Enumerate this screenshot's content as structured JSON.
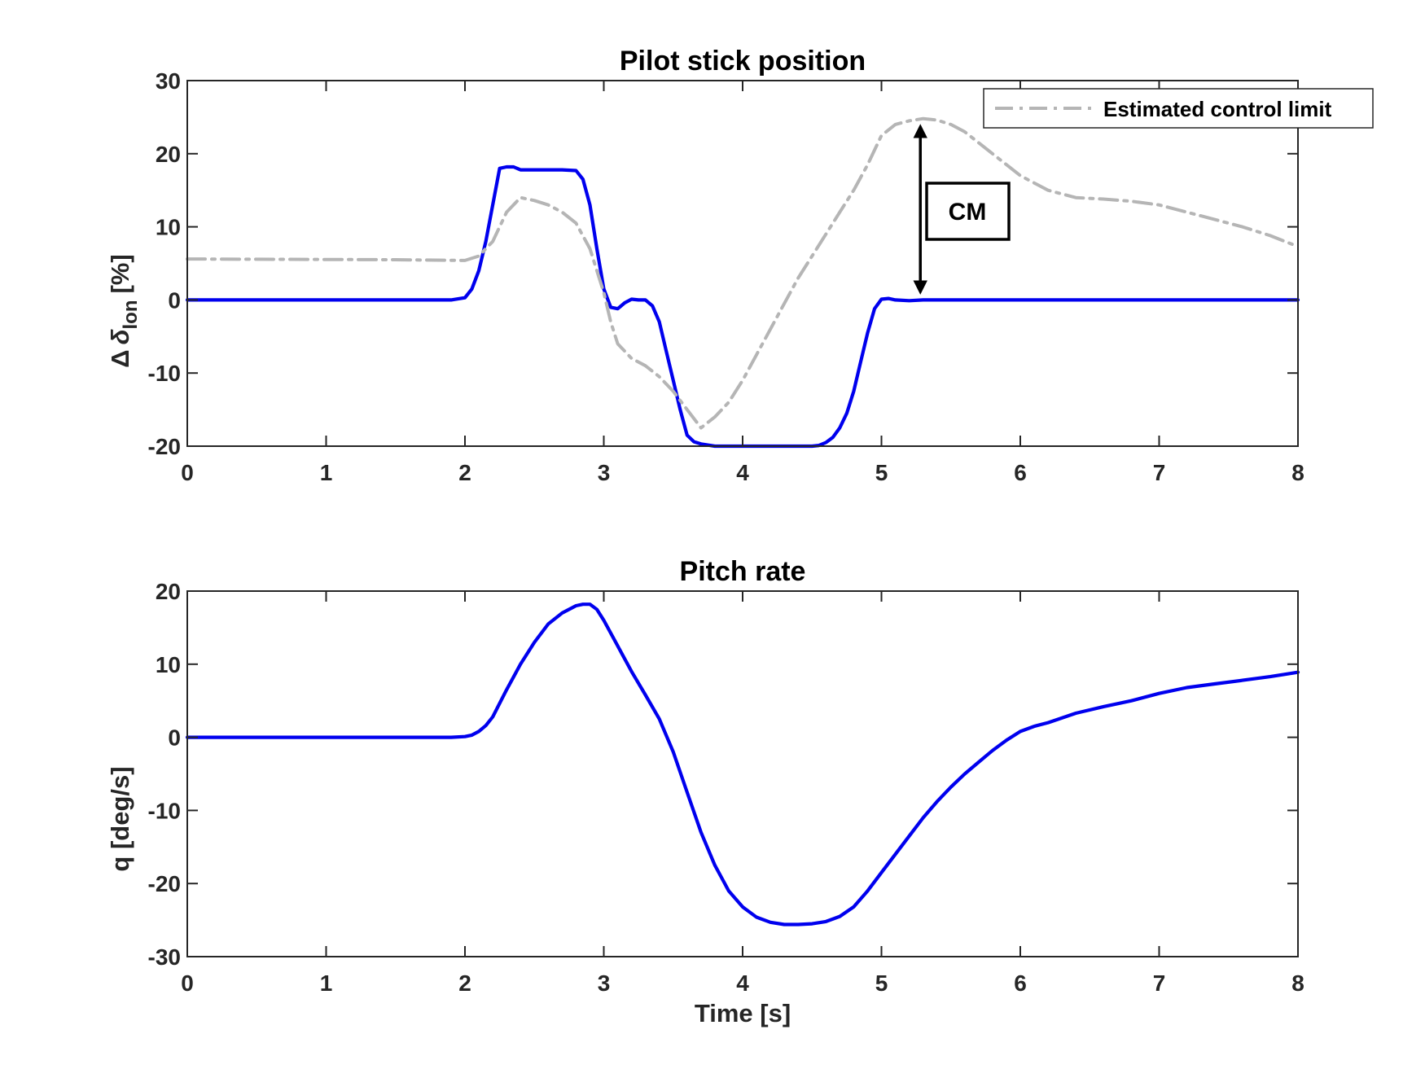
{
  "colors": {
    "stick": "#0000ee",
    "limit": "#b5b5b5",
    "axis": "#262626",
    "annotation": "#000000"
  },
  "chart_data": [
    {
      "type": "line",
      "title": "Pilot stick position",
      "xlabel": "",
      "ylabel_prefix": "Δ",
      "ylabel_symbol": "δ",
      "ylabel_subscript": "lon",
      "ylabel_suffix": "[%]",
      "xlim": [
        0,
        8
      ],
      "ylim": [
        -20,
        30
      ],
      "xticks": [
        0,
        1,
        2,
        3,
        4,
        5,
        6,
        7,
        8
      ],
      "yticks": [
        -20,
        -10,
        0,
        10,
        20,
        30
      ],
      "grid": false,
      "legend": {
        "placement": "top-right",
        "entries": [
          "Estimated control limit"
        ]
      },
      "annotation": {
        "text": "CM",
        "x": 5.28,
        "y_from": 0,
        "y_to": 24.8
      },
      "series": [
        {
          "id": "stick",
          "style": "solid",
          "x": [
            0,
            1.9,
            2.0,
            2.05,
            2.1,
            2.15,
            2.2,
            2.25,
            2.3,
            2.35,
            2.4,
            2.45,
            2.5,
            2.6,
            2.7,
            2.8,
            2.85,
            2.9,
            2.95,
            3.0,
            3.05,
            3.1,
            3.15,
            3.2,
            3.25,
            3.3,
            3.35,
            3.4,
            3.45,
            3.5,
            3.55,
            3.6,
            3.65,
            3.7,
            3.8,
            4.0,
            4.2,
            4.4,
            4.5,
            4.55,
            4.6,
            4.65,
            4.7,
            4.75,
            4.8,
            4.85,
            4.9,
            4.95,
            5.0,
            5.05,
            5.1,
            5.2,
            5.3,
            6.0,
            7.0,
            8.0
          ],
          "values": [
            0,
            0,
            0.3,
            1.5,
            4,
            8,
            13,
            18,
            18.2,
            18.2,
            17.8,
            17.8,
            17.8,
            17.8,
            17.8,
            17.7,
            16.5,
            13,
            7,
            1.5,
            -1,
            -1.2,
            -0.4,
            0.1,
            0,
            0,
            -0.8,
            -3,
            -7,
            -11,
            -15,
            -18.5,
            -19.4,
            -19.7,
            -20,
            -20,
            -20,
            -20,
            -20,
            -19.9,
            -19.5,
            -18.8,
            -17.5,
            -15.5,
            -12.5,
            -8.5,
            -4.5,
            -1.2,
            0.1,
            0.2,
            0,
            -0.1,
            0,
            0,
            0,
            0
          ]
        },
        {
          "id": "limit",
          "name": "Estimated control limit",
          "style": "dash-dot",
          "x": [
            0,
            1.5,
            2.0,
            2.1,
            2.2,
            2.3,
            2.4,
            2.5,
            2.6,
            2.7,
            2.8,
            2.9,
            3.0,
            3.05,
            3.1,
            3.2,
            3.3,
            3.4,
            3.5,
            3.6,
            3.7,
            3.8,
            3.9,
            4.0,
            4.1,
            4.2,
            4.3,
            4.4,
            4.5,
            4.6,
            4.7,
            4.8,
            4.9,
            5.0,
            5.1,
            5.2,
            5.3,
            5.4,
            5.5,
            5.6,
            5.8,
            6.0,
            6.2,
            6.4,
            6.6,
            6.8,
            7.0,
            7.2,
            7.4,
            7.6,
            7.8,
            8.0
          ],
          "values": [
            5.6,
            5.5,
            5.4,
            6,
            8,
            12,
            14,
            13.6,
            13,
            12,
            10.5,
            7,
            1,
            -3,
            -6,
            -8,
            -9,
            -10.5,
            -12.5,
            -15,
            -17.5,
            -16,
            -14,
            -11,
            -7.5,
            -4,
            -0.5,
            3,
            6,
            9,
            12,
            15,
            18.5,
            22.5,
            24,
            24.5,
            24.8,
            24.6,
            24,
            23,
            20,
            17,
            15,
            14,
            13.8,
            13.5,
            13,
            12,
            11,
            10,
            8.8,
            7.3
          ]
        }
      ]
    },
    {
      "type": "line",
      "title": "Pitch rate",
      "xlabel": "Time [s]",
      "ylabel": "q [deg/s]",
      "xlim": [
        0,
        8
      ],
      "ylim": [
        -30,
        20
      ],
      "xticks": [
        0,
        1,
        2,
        3,
        4,
        5,
        6,
        7,
        8
      ],
      "yticks": [
        -30,
        -20,
        -10,
        0,
        10,
        20
      ],
      "grid": false,
      "series": [
        {
          "id": "pitch",
          "style": "solid",
          "x": [
            0,
            1.9,
            2.0,
            2.05,
            2.1,
            2.15,
            2.2,
            2.3,
            2.4,
            2.5,
            2.6,
            2.7,
            2.8,
            2.85,
            2.9,
            2.95,
            3.0,
            3.1,
            3.2,
            3.3,
            3.4,
            3.5,
            3.6,
            3.7,
            3.8,
            3.9,
            4.0,
            4.1,
            4.2,
            4.3,
            4.4,
            4.5,
            4.6,
            4.7,
            4.8,
            4.9,
            5.0,
            5.1,
            5.2,
            5.3,
            5.4,
            5.5,
            5.6,
            5.7,
            5.8,
            5.9,
            6.0,
            6.1,
            6.2,
            6.4,
            6.6,
            6.8,
            7.0,
            7.2,
            7.4,
            7.6,
            7.8,
            8.0
          ],
          "values": [
            0,
            0,
            0.1,
            0.3,
            0.8,
            1.6,
            2.8,
            6.5,
            10,
            13,
            15.5,
            17,
            18,
            18.2,
            18.2,
            17.5,
            16,
            12.5,
            9,
            5.8,
            2.5,
            -2,
            -7.5,
            -13,
            -17.5,
            -21,
            -23.2,
            -24.6,
            -25.3,
            -25.6,
            -25.6,
            -25.5,
            -25.2,
            -24.5,
            -23.2,
            -21,
            -18.5,
            -16,
            -13.5,
            -11,
            -8.8,
            -6.8,
            -5,
            -3.4,
            -1.8,
            -0.4,
            0.8,
            1.5,
            2.0,
            3.3,
            4.2,
            5.0,
            6.0,
            6.8,
            7.3,
            7.8,
            8.3,
            8.9
          ]
        }
      ]
    }
  ]
}
